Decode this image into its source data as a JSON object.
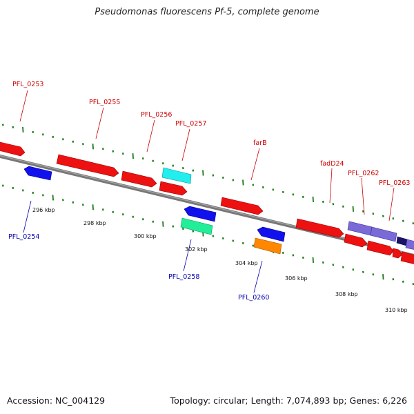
{
  "title": "Pseudomonas fluorescens Pf-5, complete genome",
  "footer": {
    "accession": "Accession: NC_004129",
    "summary": "Topology: circular; Length: 7,074,893 bp; Genes: 6,226"
  },
  "colors": {
    "forward_label": "#cc0000",
    "reverse_label": "#0000aa",
    "backbone": "#777777",
    "gc_ticks": "#1a7a1a"
  },
  "scale_ticks": [
    {
      "label": "296 kbp",
      "kbp": 296
    },
    {
      "label": "298 kbp",
      "kbp": 298
    },
    {
      "label": "300 kbp",
      "kbp": 300
    },
    {
      "label": "302 kbp",
      "kbp": 302
    },
    {
      "label": "304 kbp",
      "kbp": 304
    },
    {
      "label": "306 kbp",
      "kbp": 306
    },
    {
      "label": "308 kbp",
      "kbp": 308
    },
    {
      "label": "310 kbp",
      "kbp": 310
    }
  ],
  "gene_labels": [
    {
      "text": "PFL_0253",
      "strand": "forward"
    },
    {
      "text": "PFL_0255",
      "strand": "forward"
    },
    {
      "text": "PFL_0256",
      "strand": "forward"
    },
    {
      "text": "PFL_0257",
      "strand": "forward"
    },
    {
      "text": "farB",
      "strand": "forward"
    },
    {
      "text": "fadD24",
      "strand": "forward"
    },
    {
      "text": "PFL_0262",
      "strand": "forward"
    },
    {
      "text": "PFL_0263",
      "strand": "forward"
    },
    {
      "text": "PFL_0254",
      "strand": "reverse"
    },
    {
      "text": "PFL_0258",
      "strand": "reverse"
    },
    {
      "text": "PFL_0260",
      "strand": "reverse"
    }
  ]
}
